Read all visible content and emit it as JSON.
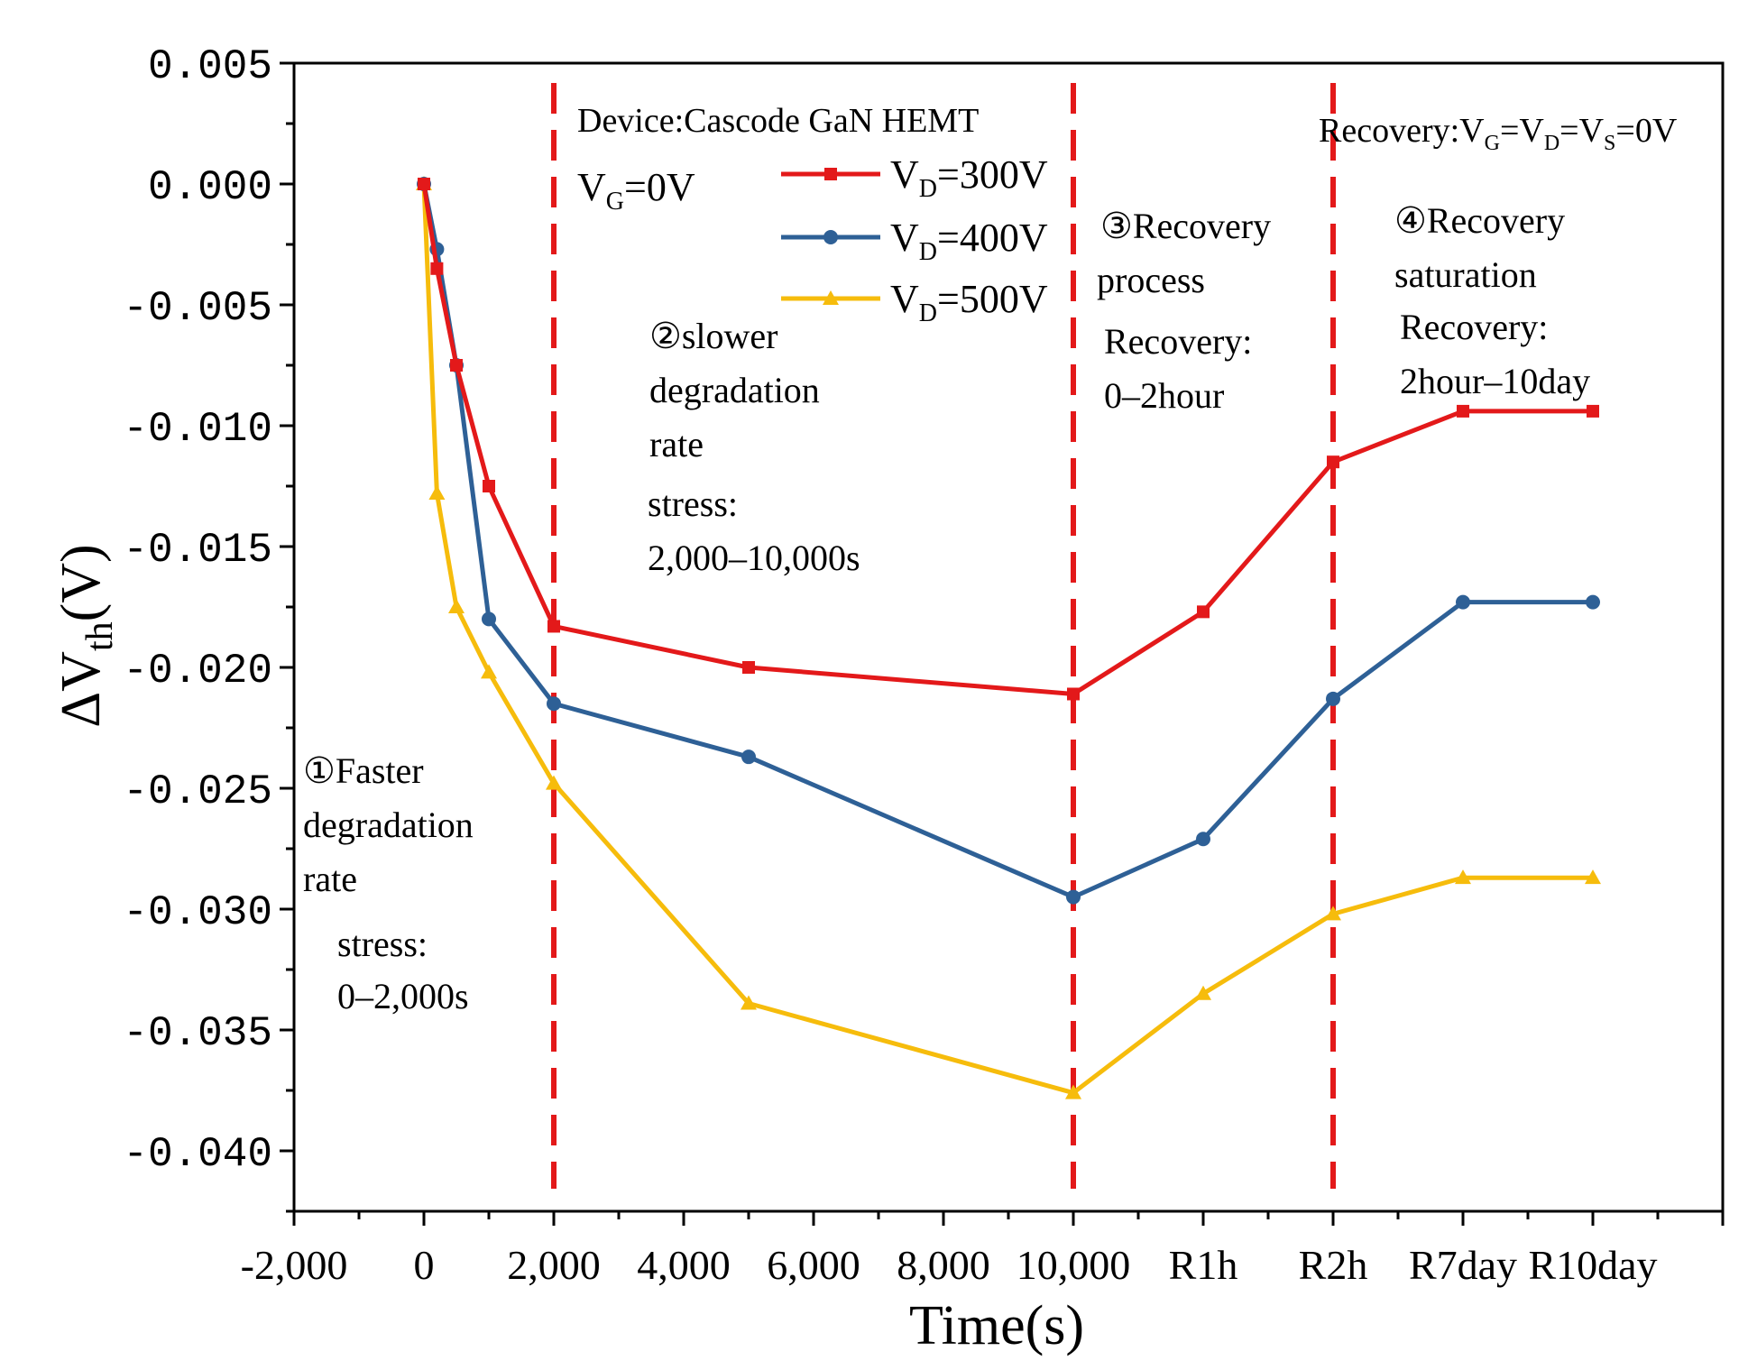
{
  "chart_data": {
    "type": "line",
    "title": "",
    "xlabel": "Time(s)",
    "ylabel": {
      "delta": "ΔV",
      "sub": "th",
      "unit": "(V)"
    },
    "xlim": [
      -2000,
      20000
    ],
    "ylim": [
      -0.0425,
      0.005
    ],
    "x_ticks": [
      {
        "value": -2000,
        "label": "-2,000"
      },
      {
        "value": 0,
        "label": "0"
      },
      {
        "value": 2000,
        "label": "2,000"
      },
      {
        "value": 4000,
        "label": "4,000"
      },
      {
        "value": 6000,
        "label": "6,000"
      },
      {
        "value": 8000,
        "label": "8,000"
      },
      {
        "value": 10000,
        "label": "10,000"
      },
      {
        "value": 12000,
        "label": "R1h"
      },
      {
        "value": 14000,
        "label": "R2h"
      },
      {
        "value": 16000,
        "label": "R7day"
      },
      {
        "value": 18000,
        "label": "R10day"
      }
    ],
    "y_ticks": [
      {
        "value": 0.005,
        "label": "0.005"
      },
      {
        "value": 0.0,
        "label": "0.000"
      },
      {
        "value": -0.005,
        "label": "-0.005"
      },
      {
        "value": -0.01,
        "label": "-0.010"
      },
      {
        "value": -0.015,
        "label": "-0.015"
      },
      {
        "value": -0.02,
        "label": "-0.020"
      },
      {
        "value": -0.025,
        "label": "-0.025"
      },
      {
        "value": -0.03,
        "label": "-0.030"
      },
      {
        "value": -0.035,
        "label": "-0.035"
      },
      {
        "value": -0.04,
        "label": "-0.040"
      }
    ],
    "stage_boundaries": [
      2000,
      10000,
      14000
    ],
    "series": [
      {
        "name": "VD=300V",
        "label_main": "V",
        "label_sub": "D",
        "label_rest": "=300V",
        "color": "#e3191a",
        "marker": "square",
        "x": [
          0,
          200,
          500,
          1000,
          2000,
          5000,
          10000,
          12000,
          14000,
          16000,
          18000
        ],
        "y": [
          0.0,
          -0.0035,
          -0.0075,
          -0.0125,
          -0.0183,
          -0.02,
          -0.0211,
          -0.0177,
          -0.0115,
          -0.0094,
          -0.0094
        ]
      },
      {
        "name": "VD=400V",
        "label_main": "V",
        "label_sub": "D",
        "label_rest": "=400V",
        "color": "#2e6096",
        "marker": "circle",
        "x": [
          0,
          200,
          500,
          1000,
          2000,
          5000,
          10000,
          12000,
          14000,
          16000,
          18000
        ],
        "y": [
          0.0,
          -0.0027,
          -0.0075,
          -0.018,
          -0.0215,
          -0.0237,
          -0.0295,
          -0.0271,
          -0.0213,
          -0.0173,
          -0.0173
        ]
      },
      {
        "name": "VD=500V",
        "label_main": "V",
        "label_sub": "D",
        "label_rest": "=500V",
        "color": "#f6bc0c",
        "marker": "triangle",
        "x": [
          0,
          200,
          500,
          1000,
          2000,
          5000,
          10000,
          12000,
          14000,
          16000,
          18000
        ],
        "y": [
          0.0,
          -0.0128,
          -0.0175,
          -0.0202,
          -0.0248,
          -0.0339,
          -0.0376,
          -0.0335,
          -0.0302,
          -0.0287,
          -0.0287
        ]
      }
    ],
    "annotations": {
      "device": "Device:Cascode GaN HEMT",
      "vg": {
        "main": "V",
        "sub": "G",
        "rest": "=0V"
      },
      "recovery_cond": {
        "p1": "Recovery:V",
        "s1": "G",
        "p2": "=V",
        "s2": "D",
        "p3": "=V",
        "s3": "S",
        "p4": "=0V"
      },
      "stage1": [
        "①Faster",
        "degradation",
        "rate"
      ],
      "stage1_stress": [
        "stress:",
        "0–2,000s"
      ],
      "stage2": [
        "②slower",
        "degradation",
        "rate"
      ],
      "stage2_stress": [
        "stress:",
        "2,000–10,000s"
      ],
      "stage3": [
        "③Recovery",
        "process"
      ],
      "stage3_rec": [
        "Recovery:",
        "0–2hour"
      ],
      "stage4": [
        "④Recovery",
        "saturation"
      ],
      "stage4_rec": [
        "Recovery:",
        "2hour–10day"
      ]
    }
  }
}
